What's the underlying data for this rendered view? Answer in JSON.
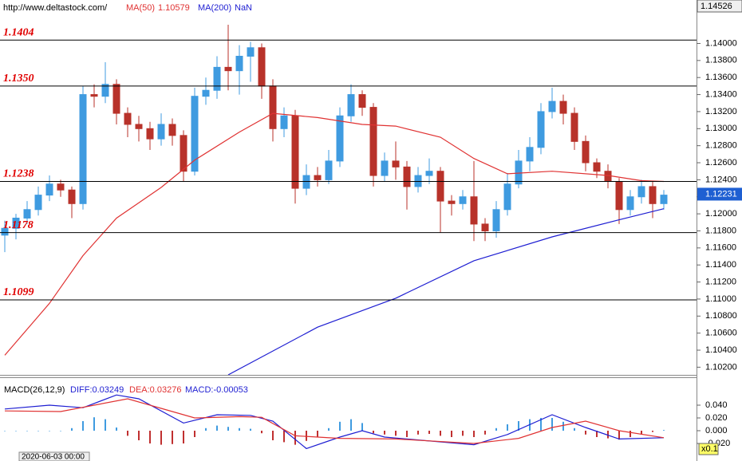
{
  "chart_data": [
    {
      "type": "candlestick",
      "source": "http://www.deltastock.com/",
      "up_color": "#3f9be0",
      "down_color": "#b8322a",
      "ylim": [
        1.1011,
        1.1451
      ],
      "yticks": [
        {
          "value": 1.102,
          "label": "1.10200"
        },
        {
          "value": 1.104,
          "label": "1.10400"
        },
        {
          "value": 1.106,
          "label": "1.10600"
        },
        {
          "value": 1.108,
          "label": "1.10800"
        },
        {
          "value": 1.11,
          "label": "1.11000"
        },
        {
          "value": 1.112,
          "label": "1.11200"
        },
        {
          "value": 1.114,
          "label": "1.11400"
        },
        {
          "value": 1.116,
          "label": "1.11600"
        },
        {
          "value": 1.118,
          "label": "1.11800"
        },
        {
          "value": 1.12,
          "label": "1.12000"
        },
        {
          "value": 1.122,
          "label": "1.12200"
        },
        {
          "value": 1.124,
          "label": "1.12400"
        },
        {
          "value": 1.126,
          "label": "1.12600"
        },
        {
          "value": 1.128,
          "label": "1.12800"
        },
        {
          "value": 1.13,
          "label": "1.13000"
        },
        {
          "value": 1.132,
          "label": "1.13200"
        },
        {
          "value": 1.134,
          "label": "1.13400"
        },
        {
          "value": 1.136,
          "label": "1.13600"
        },
        {
          "value": 1.138,
          "label": "1.13800"
        },
        {
          "value": 1.14,
          "label": "1.14000"
        }
      ],
      "axis_top": 1.14526,
      "last_price": 1.12231,
      "levels": [
        1.1404,
        {
          "value": 1.135,
          "label": "1.1350"
        },
        1.1238,
        1.1178,
        1.1099
      ],
      "candles": [
        [
          1.1175,
          1.1192,
          1.1155,
          1.1183
        ],
        [
          1.1183,
          1.12,
          1.117,
          1.1195
        ],
        [
          1.1195,
          1.1215,
          1.1188,
          1.1205
        ],
        [
          1.1205,
          1.1232,
          1.1198,
          1.1222
        ],
        [
          1.1222,
          1.1245,
          1.1215,
          1.1235
        ],
        [
          1.1235,
          1.124,
          1.122,
          1.1228
        ],
        [
          1.1228,
          1.1232,
          1.1195,
          1.1212
        ],
        [
          1.1212,
          1.135,
          1.1205,
          1.134
        ],
        [
          1.134,
          1.1352,
          1.1325,
          1.1338
        ],
        [
          1.1338,
          1.1378,
          1.133,
          1.1352
        ],
        [
          1.1352,
          1.1358,
          1.1305,
          1.1318
        ],
        [
          1.1318,
          1.1325,
          1.129,
          1.1305
        ],
        [
          1.1305,
          1.1315,
          1.1285,
          1.13
        ],
        [
          1.13,
          1.1308,
          1.1275,
          1.1288
        ],
        [
          1.1288,
          1.1318,
          1.128,
          1.1305
        ],
        [
          1.1305,
          1.1312,
          1.128,
          1.1292
        ],
        [
          1.1292,
          1.1298,
          1.1238,
          1.125
        ],
        [
          1.125,
          1.1348,
          1.1245,
          1.1338
        ],
        [
          1.1338,
          1.136,
          1.1328,
          1.1345
        ],
        [
          1.1345,
          1.1385,
          1.1335,
          1.1372
        ],
        [
          1.1372,
          1.1422,
          1.1345,
          1.1368
        ],
        [
          1.1368,
          1.1398,
          1.134,
          1.1385
        ],
        [
          1.1385,
          1.1402,
          1.1355,
          1.1395
        ],
        [
          1.1395,
          1.14,
          1.1335,
          1.135
        ],
        [
          1.135,
          1.1358,
          1.1285,
          1.13
        ],
        [
          1.13,
          1.1325,
          1.129,
          1.1315
        ],
        [
          1.1315,
          1.1322,
          1.1212,
          1.123
        ],
        [
          1.123,
          1.1258,
          1.1222,
          1.1245
        ],
        [
          1.1245,
          1.1255,
          1.1232,
          1.124
        ],
        [
          1.124,
          1.1275,
          1.1235,
          1.1262
        ],
        [
          1.1262,
          1.1325,
          1.1255,
          1.1315
        ],
        [
          1.1315,
          1.1352,
          1.1308,
          1.134
        ],
        [
          1.134,
          1.1345,
          1.1315,
          1.1325
        ],
        [
          1.1325,
          1.133,
          1.1232,
          1.1245
        ],
        [
          1.1245,
          1.1272,
          1.1238,
          1.1262
        ],
        [
          1.1262,
          1.1285,
          1.124,
          1.1255
        ],
        [
          1.1255,
          1.1262,
          1.1205,
          1.1232
        ],
        [
          1.1232,
          1.1255,
          1.1225,
          1.1245
        ],
        [
          1.1245,
          1.1265,
          1.1235,
          1.125
        ],
        [
          1.125,
          1.1255,
          1.1178,
          1.1215
        ],
        [
          1.1215,
          1.1222,
          1.1198,
          1.1212
        ],
        [
          1.1212,
          1.1228,
          1.1205,
          1.122
        ],
        [
          1.122,
          1.1262,
          1.1168,
          1.1188
        ],
        [
          1.1188,
          1.1195,
          1.1168,
          1.118
        ],
        [
          1.118,
          1.1215,
          1.1172,
          1.1205
        ],
        [
          1.1205,
          1.1248,
          1.1198,
          1.1235
        ],
        [
          1.1235,
          1.1275,
          1.123,
          1.1262
        ],
        [
          1.1262,
          1.129,
          1.125,
          1.1278
        ],
        [
          1.1278,
          1.133,
          1.127,
          1.132
        ],
        [
          1.132,
          1.1348,
          1.1312,
          1.1332
        ],
        [
          1.1332,
          1.134,
          1.1305,
          1.1318
        ],
        [
          1.1318,
          1.1325,
          1.1275,
          1.1285
        ],
        [
          1.1285,
          1.1292,
          1.125,
          1.126
        ],
        [
          1.126,
          1.1265,
          1.1242,
          1.125
        ],
        [
          1.125,
          1.1258,
          1.123,
          1.1238
        ],
        [
          1.1238,
          1.1242,
          1.1188,
          1.1205
        ],
        [
          1.1205,
          1.1228,
          1.1198,
          1.122
        ],
        [
          1.122,
          1.124,
          1.1212,
          1.1232
        ],
        [
          1.1232,
          1.1238,
          1.1195,
          1.1212
        ],
        [
          1.1212,
          1.1228,
          1.1205,
          1.1222
        ]
      ],
      "series": [
        {
          "name": "MA(50)",
          "value_label": "1.10579",
          "color": "#e03232",
          "x": [
            0,
            4,
            7,
            10,
            14,
            17,
            21,
            24,
            28,
            32,
            35,
            39,
            42,
            45,
            49,
            54,
            57,
            59
          ],
          "values": [
            1.1034,
            1.1095,
            1.1151,
            1.1195,
            1.1231,
            1.1263,
            1.1296,
            1.1318,
            1.1313,
            1.1305,
            1.1303,
            1.129,
            1.1265,
            1.1247,
            1.125,
            1.1245,
            1.1239,
            1.1238
          ]
        },
        {
          "name": "MA(200)",
          "value_label": "NaN",
          "color": "#1e1ed2",
          "x": [
            20,
            28,
            35,
            42,
            49,
            55,
            59
          ],
          "values": [
            1.1011,
            1.1067,
            1.1101,
            1.1145,
            1.1173,
            1.1193,
            1.1206
          ]
        }
      ]
    },
    {
      "type": "macd",
      "title": "MACD(26,12,9)",
      "ylim": [
        -0.0375,
        0.0775
      ],
      "yticks": [
        {
          "value": 0.04,
          "label": "0.040"
        },
        {
          "value": 0.02,
          "label": "0.020"
        },
        {
          "value": 0,
          "label": "0.000"
        },
        {
          "value": -0.02,
          "label": "-0.020"
        }
      ],
      "histogram": {
        "name": "MACD:-0.00053",
        "up_color": "#3f9be0",
        "down_color": "#c03030",
        "values": [
          0,
          0,
          0,
          0,
          0,
          0,
          0.004,
          0.015,
          0.021,
          0.018,
          0.005,
          -0.008,
          -0.015,
          -0.02,
          -0.022,
          -0.021,
          -0.02,
          -0.01,
          0.004,
          0.008,
          0.006,
          0.004,
          0.003,
          -0.004,
          -0.015,
          -0.018,
          -0.022,
          -0.016,
          -0.01,
          0.004,
          0.014,
          0.018,
          0.012,
          -0.004,
          -0.006,
          -0.008,
          -0.01,
          -0.006,
          -0.005,
          -0.008,
          -0.01,
          -0.008,
          -0.01,
          -0.006,
          0.004,
          0.01,
          0.015,
          0.018,
          0.02,
          0.02,
          0.014,
          0.004,
          -0.006,
          -0.01,
          -0.012,
          -0.014,
          -0.01,
          -0.006,
          -0.002,
          0.001
        ]
      },
      "series": [
        {
          "name": "DIFF:0.03249",
          "color": "#1e1ed2",
          "x": [
            0,
            4,
            7,
            10,
            12,
            16,
            19,
            22,
            24,
            27,
            30,
            32,
            34,
            42,
            45,
            49,
            52,
            55,
            59
          ],
          "values": [
            0.034,
            0.04,
            0.036,
            0.056,
            0.05,
            0.012,
            0.025,
            0.024,
            0.015,
            -0.028,
            -0.01,
            0,
            -0.01,
            -0.022,
            -0.006,
            0.025,
            0.005,
            -0.013,
            -0.011
          ]
        },
        {
          "name": "DEA:0.03276",
          "color": "#e03232",
          "x": [
            0,
            5,
            8,
            11,
            14,
            17,
            21,
            23,
            26,
            30,
            35,
            42,
            46,
            49,
            52,
            55,
            59
          ],
          "values": [
            0.031,
            0.03,
            0.04,
            0.05,
            0.035,
            0.02,
            0.022,
            0.021,
            -0.008,
            -0.012,
            -0.013,
            -0.02,
            -0.012,
            0.005,
            0.015,
            0,
            -0.011
          ]
        }
      ],
      "date": "2020-06-03 00:00",
      "scale_label": "x0.1"
    }
  ]
}
